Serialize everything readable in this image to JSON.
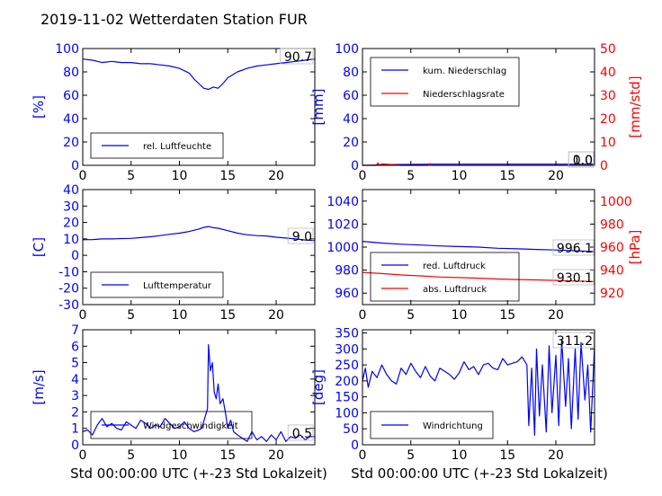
{
  "title": "2019-11-02 Wetterdaten Station FUR",
  "xlabel": "Std 00:00:00 UTC (+-23 Std Lokalzeit)",
  "colors": {
    "left_axis": "#0000ff",
    "right_axis": "#ff0000",
    "series_blue": "#0000ff",
    "series_red": "#ff0000"
  },
  "chart_data": [
    {
      "id": "humidity",
      "type": "line",
      "ylabel": "[%]",
      "ylim": [
        0,
        100
      ],
      "yticks": [
        0,
        20,
        40,
        60,
        80,
        100
      ],
      "xlim": [
        0,
        24
      ],
      "xticks": [
        0,
        5,
        10,
        15,
        20
      ],
      "legend": "bottom-left",
      "last_value_label": "90.7",
      "series": [
        {
          "name": "rel. Luftfeuchte",
          "color": "#0000ff",
          "x": [
            0,
            1,
            2,
            3,
            4,
            5,
            6,
            7,
            8,
            9,
            10,
            11,
            11.5,
            12,
            12.5,
            13,
            13.5,
            14,
            14.5,
            15,
            16,
            17,
            18,
            19,
            20,
            21,
            22,
            23,
            24
          ],
          "y": [
            91,
            90,
            88,
            89,
            88,
            88,
            87,
            87,
            86,
            85,
            83,
            79,
            74,
            70,
            66,
            65,
            67,
            66,
            70,
            75,
            80,
            83,
            85,
            86,
            87,
            88,
            89,
            90,
            91
          ]
        }
      ]
    },
    {
      "id": "precip",
      "type": "line",
      "ylabel": "[mm]",
      "ylim": [
        0,
        100
      ],
      "yticks": [
        0,
        20,
        40,
        60,
        80,
        100
      ],
      "y2label": "[mm/std]",
      "y2lim": [
        0,
        50
      ],
      "y2ticks": [
        0,
        10,
        20,
        30,
        40,
        50
      ],
      "xlim": [
        0,
        24
      ],
      "xticks": [
        0,
        5,
        10,
        15,
        20
      ],
      "legend": "top-left",
      "last_value_labels": [
        "1.0",
        "0.0"
      ],
      "series": [
        {
          "name": "kum. Niederschlag",
          "color": "#0000ff",
          "axis": "left",
          "x": [
            0,
            1.5,
            2,
            5,
            7,
            10,
            15,
            20,
            24
          ],
          "y": [
            0,
            0.3,
            0.6,
            0.8,
            1,
            1,
            1,
            1,
            1
          ]
        },
        {
          "name": "Niederschlagsrate",
          "color": "#ff0000",
          "axis": "right",
          "x": [
            0,
            1.4,
            1.6,
            1.8,
            2,
            4,
            6.8,
            7,
            7.2,
            10,
            15,
            20,
            24
          ],
          "y": [
            0,
            0,
            1,
            0,
            0.6,
            0,
            0,
            0.8,
            0,
            0,
            0,
            0,
            0
          ]
        }
      ]
    },
    {
      "id": "temperature",
      "type": "line",
      "ylabel": "[C]",
      "ylim": [
        -30,
        40
      ],
      "yticks": [
        -30,
        -20,
        -10,
        0,
        10,
        20,
        30,
        40
      ],
      "xlim": [
        0,
        24
      ],
      "xticks": [
        0,
        5,
        10,
        15,
        20
      ],
      "legend": "bottom-left",
      "last_value_label": "9.0",
      "series": [
        {
          "name": "Lufttemperatur",
          "color": "#0000ff",
          "x": [
            0,
            1,
            2,
            3,
            4,
            5,
            6,
            7,
            8,
            9,
            10,
            11,
            12,
            12.5,
            13,
            13.5,
            14,
            15,
            16,
            17,
            18,
            19,
            20,
            21,
            22,
            23,
            24
          ],
          "y": [
            9.5,
            9.6,
            10,
            10,
            10.2,
            10.3,
            10.8,
            11.3,
            12,
            12.8,
            13.5,
            14.5,
            16,
            17,
            17.5,
            16.8,
            16.5,
            15,
            13.5,
            12.5,
            12,
            11.8,
            11,
            10.5,
            10,
            9.3,
            9
          ]
        }
      ]
    },
    {
      "id": "pressure",
      "type": "line",
      "ylabel": "",
      "ylim": [
        950,
        1050
      ],
      "yticks": [
        960,
        980,
        1000,
        1020,
        1040
      ],
      "y2label": "[hPa]",
      "y2lim": [
        910,
        1010
      ],
      "y2ticks": [
        920,
        940,
        960,
        980,
        1000
      ],
      "xlim": [
        0,
        24
      ],
      "xticks": [
        0,
        5,
        10,
        15,
        20
      ],
      "legend": "bottom-left",
      "last_value_labels": [
        "996.1",
        "930.1"
      ],
      "series": [
        {
          "name": "red. Luftdruck",
          "color": "#0000ff",
          "axis": "left",
          "x": [
            0,
            2,
            4,
            6,
            8,
            10,
            12,
            14,
            16,
            18,
            20,
            22,
            24
          ],
          "y": [
            1005,
            1003.5,
            1002.5,
            1001.8,
            1001,
            1000.5,
            1000,
            999,
            998.5,
            998,
            997.5,
            996.8,
            996.1
          ]
        },
        {
          "name": "abs. Luftdruck",
          "color": "#ff0000",
          "axis": "right",
          "x": [
            0,
            2,
            4,
            6,
            8,
            10,
            12,
            14,
            16,
            18,
            20,
            22,
            24
          ],
          "y": [
            938,
            937,
            935.8,
            935,
            934,
            933.5,
            933,
            932.3,
            931.8,
            931.5,
            931,
            930.5,
            930.1
          ]
        }
      ]
    },
    {
      "id": "wind_speed",
      "type": "line",
      "ylabel": "[m/s]",
      "ylim": [
        0,
        7
      ],
      "yticks": [
        0,
        1,
        2,
        3,
        4,
        5,
        6,
        7
      ],
      "xlim": [
        0,
        24
      ],
      "xticks": [
        0,
        5,
        10,
        15,
        20
      ],
      "legend": "bottom-left",
      "last_value_label": "0.5",
      "series": [
        {
          "name": "Windgeschwindigkeit",
          "color": "#0000ff",
          "x": [
            0,
            0.5,
            1,
            1.5,
            2,
            2.5,
            3,
            3.5,
            4,
            4.5,
            5,
            5.5,
            6,
            6.5,
            7,
            7.5,
            8,
            8.5,
            9,
            9.5,
            10,
            10.5,
            11,
            11.5,
            12,
            12.3,
            12.6,
            12.9,
            13,
            13.2,
            13.4,
            13.6,
            13.8,
            14,
            14.2,
            14.5,
            14.8,
            15,
            15.3,
            15.6,
            16,
            16.5,
            17,
            17.5,
            18,
            18.5,
            19,
            19.5,
            20,
            20.5,
            21,
            21.5,
            22,
            22.5,
            23,
            23.5,
            24
          ],
          "y": [
            0.8,
            0.9,
            0.6,
            1.2,
            1.6,
            1.1,
            1.3,
            1.0,
            0.9,
            1.4,
            1.2,
            1.0,
            1.5,
            1.3,
            1.0,
            1.2,
            1.1,
            1.6,
            1.3,
            1.0,
            1.1,
            1.4,
            1.0,
            0.8,
            0.9,
            1.0,
            1.6,
            2.2,
            6.1,
            4.5,
            5.0,
            3.2,
            2.8,
            3.7,
            2.5,
            2.8,
            1.8,
            1.0,
            1.5,
            0.8,
            0.6,
            0.4,
            0.2,
            0.8,
            0.3,
            0.5,
            0.2,
            0.6,
            0.3,
            0.8,
            0.2,
            0.5,
            0.4,
            0.6,
            0.3,
            0.5,
            0.5
          ]
        }
      ]
    },
    {
      "id": "wind_dir",
      "type": "line",
      "ylabel": "[deg]",
      "ylim": [
        0,
        360
      ],
      "yticks": [
        0,
        50,
        100,
        150,
        200,
        250,
        300,
        350
      ],
      "xlim": [
        0,
        24
      ],
      "xticks": [
        0,
        5,
        10,
        15,
        20
      ],
      "legend": "bottom-left",
      "last_value_label": "311.2",
      "series": [
        {
          "name": "Windrichtung",
          "color": "#0000ff",
          "x": [
            0,
            0.3,
            0.6,
            1,
            1.5,
            2,
            2.5,
            3,
            3.5,
            4,
            4.5,
            5,
            5.5,
            6,
            6.5,
            7,
            7.5,
            8,
            8.5,
            9,
            9.5,
            10,
            10.5,
            11,
            11.5,
            12,
            12.5,
            13,
            13.5,
            14,
            14.5,
            15,
            15.5,
            16,
            16.5,
            17,
            17.2,
            17.5,
            17.8,
            18,
            18.3,
            18.6,
            19,
            19.3,
            19.6,
            20,
            20.3,
            20.6,
            21,
            21.3,
            21.6,
            22,
            22.3,
            22.6,
            23,
            23.3,
            23.6,
            24
          ],
          "y": [
            200,
            240,
            180,
            230,
            210,
            250,
            220,
            200,
            190,
            240,
            220,
            255,
            230,
            210,
            245,
            215,
            200,
            240,
            230,
            220,
            205,
            225,
            260,
            235,
            245,
            220,
            250,
            255,
            240,
            235,
            270,
            250,
            255,
            260,
            275,
            250,
            60,
            240,
            30,
            300,
            90,
            250,
            40,
            310,
            100,
            280,
            60,
            330,
            120,
            270,
            50,
            300,
            80,
            320,
            140,
            250,
            40,
            311
          ]
        }
      ]
    }
  ]
}
